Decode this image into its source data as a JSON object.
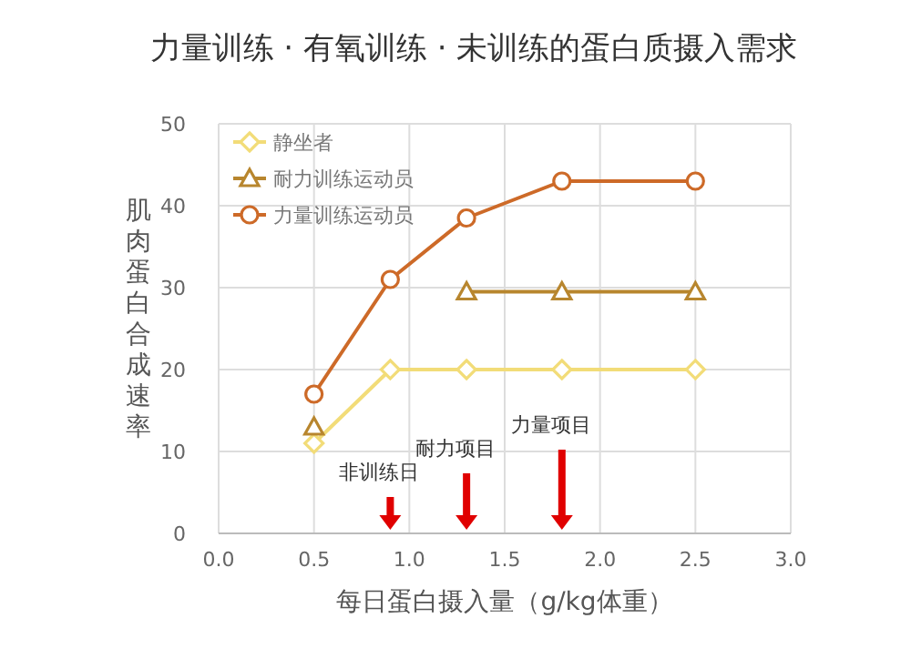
{
  "chart_data": {
    "type": "line",
    "title": "力量训练 · 有氧训练 · 未训练的蛋白质摄入需求",
    "xlabel": "每日蛋白摄入量（g/kg体重）",
    "ylabel": "肌肉蛋白合成速率",
    "x": [
      0.5,
      0.9,
      1.3,
      1.8,
      2.5
    ],
    "series": [
      {
        "name": "静坐者",
        "color": "#f2dc78",
        "marker": "diamond",
        "values": [
          11,
          20,
          20,
          20,
          20
        ]
      },
      {
        "name": "耐力训练运动员",
        "color": "#b8862e",
        "marker": "triangle",
        "values": [
          13,
          null,
          29.5,
          29.5,
          29.5
        ]
      },
      {
        "name": "力量训练运动员",
        "color": "#cd6a28",
        "marker": "circle",
        "values": [
          17,
          31,
          38.5,
          43,
          43
        ]
      }
    ],
    "xlim": [
      0,
      3
    ],
    "xticks": [
      {
        "value": 0,
        "label": "0.0"
      },
      0.5,
      {
        "value": 1,
        "label": "1.0"
      },
      1.5,
      {
        "value": 2,
        "label": "2.0"
      },
      2.5,
      {
        "value": 3,
        "label": "3.0"
      }
    ],
    "ylim": [
      0,
      50
    ],
    "yticks": [
      0,
      10,
      20,
      30,
      40,
      50
    ],
    "grid": true,
    "legend": "top left",
    "line_style": "solid",
    "ref_lines": [
      {
        "axis": "x",
        "value": 0.9,
        "label": "非训练日",
        "color": "#e00000"
      },
      {
        "axis": "x",
        "value": 1.3,
        "label": "耐力项目",
        "color": "#e00000"
      },
      {
        "axis": "x",
        "value": 1.8,
        "label": "力量项目",
        "color": "#e00000"
      }
    ]
  }
}
